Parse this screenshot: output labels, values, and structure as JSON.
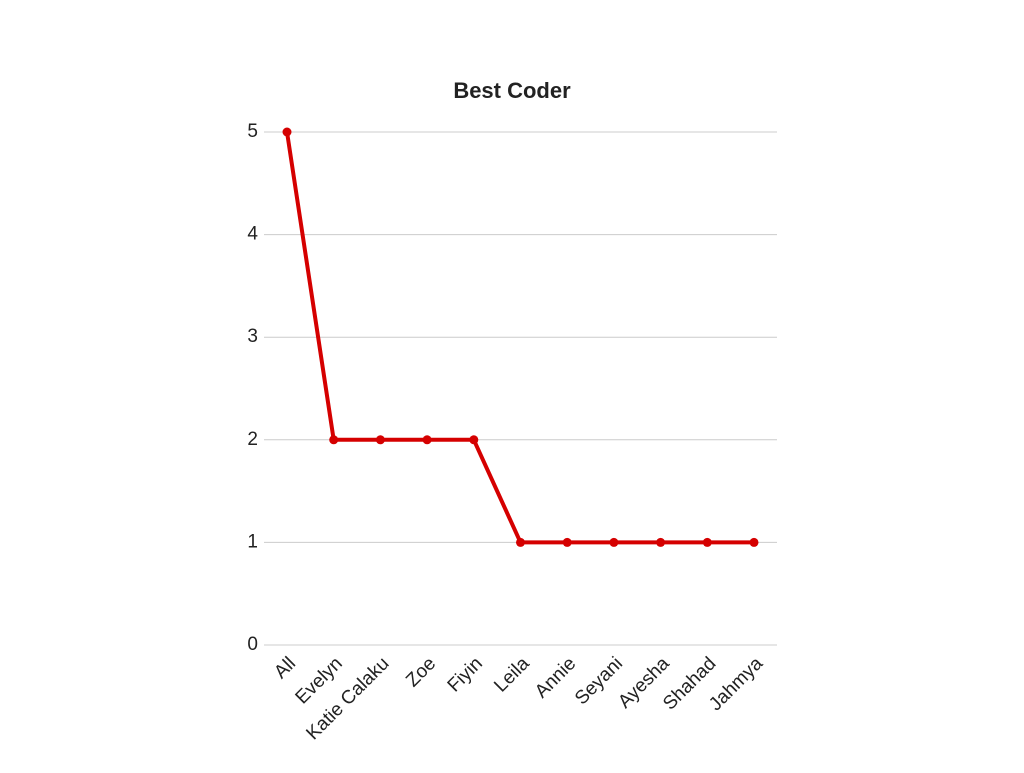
{
  "chart_data": {
    "type": "line",
    "title": "Best Coder",
    "categories": [
      "All",
      "Evelyn",
      "Katie Calaku",
      "Zoe",
      "Fiyin",
      "Leila",
      "Annie",
      "Seyani",
      "Ayesha",
      "Shahad",
      "Jahmya"
    ],
    "values": [
      5,
      2,
      2,
      2,
      2,
      1,
      1,
      1,
      1,
      1,
      1
    ],
    "color": "#d50000",
    "ylim": [
      0,
      5
    ],
    "yticks": [
      0,
      1,
      2,
      3,
      4,
      5
    ],
    "grid": true
  }
}
